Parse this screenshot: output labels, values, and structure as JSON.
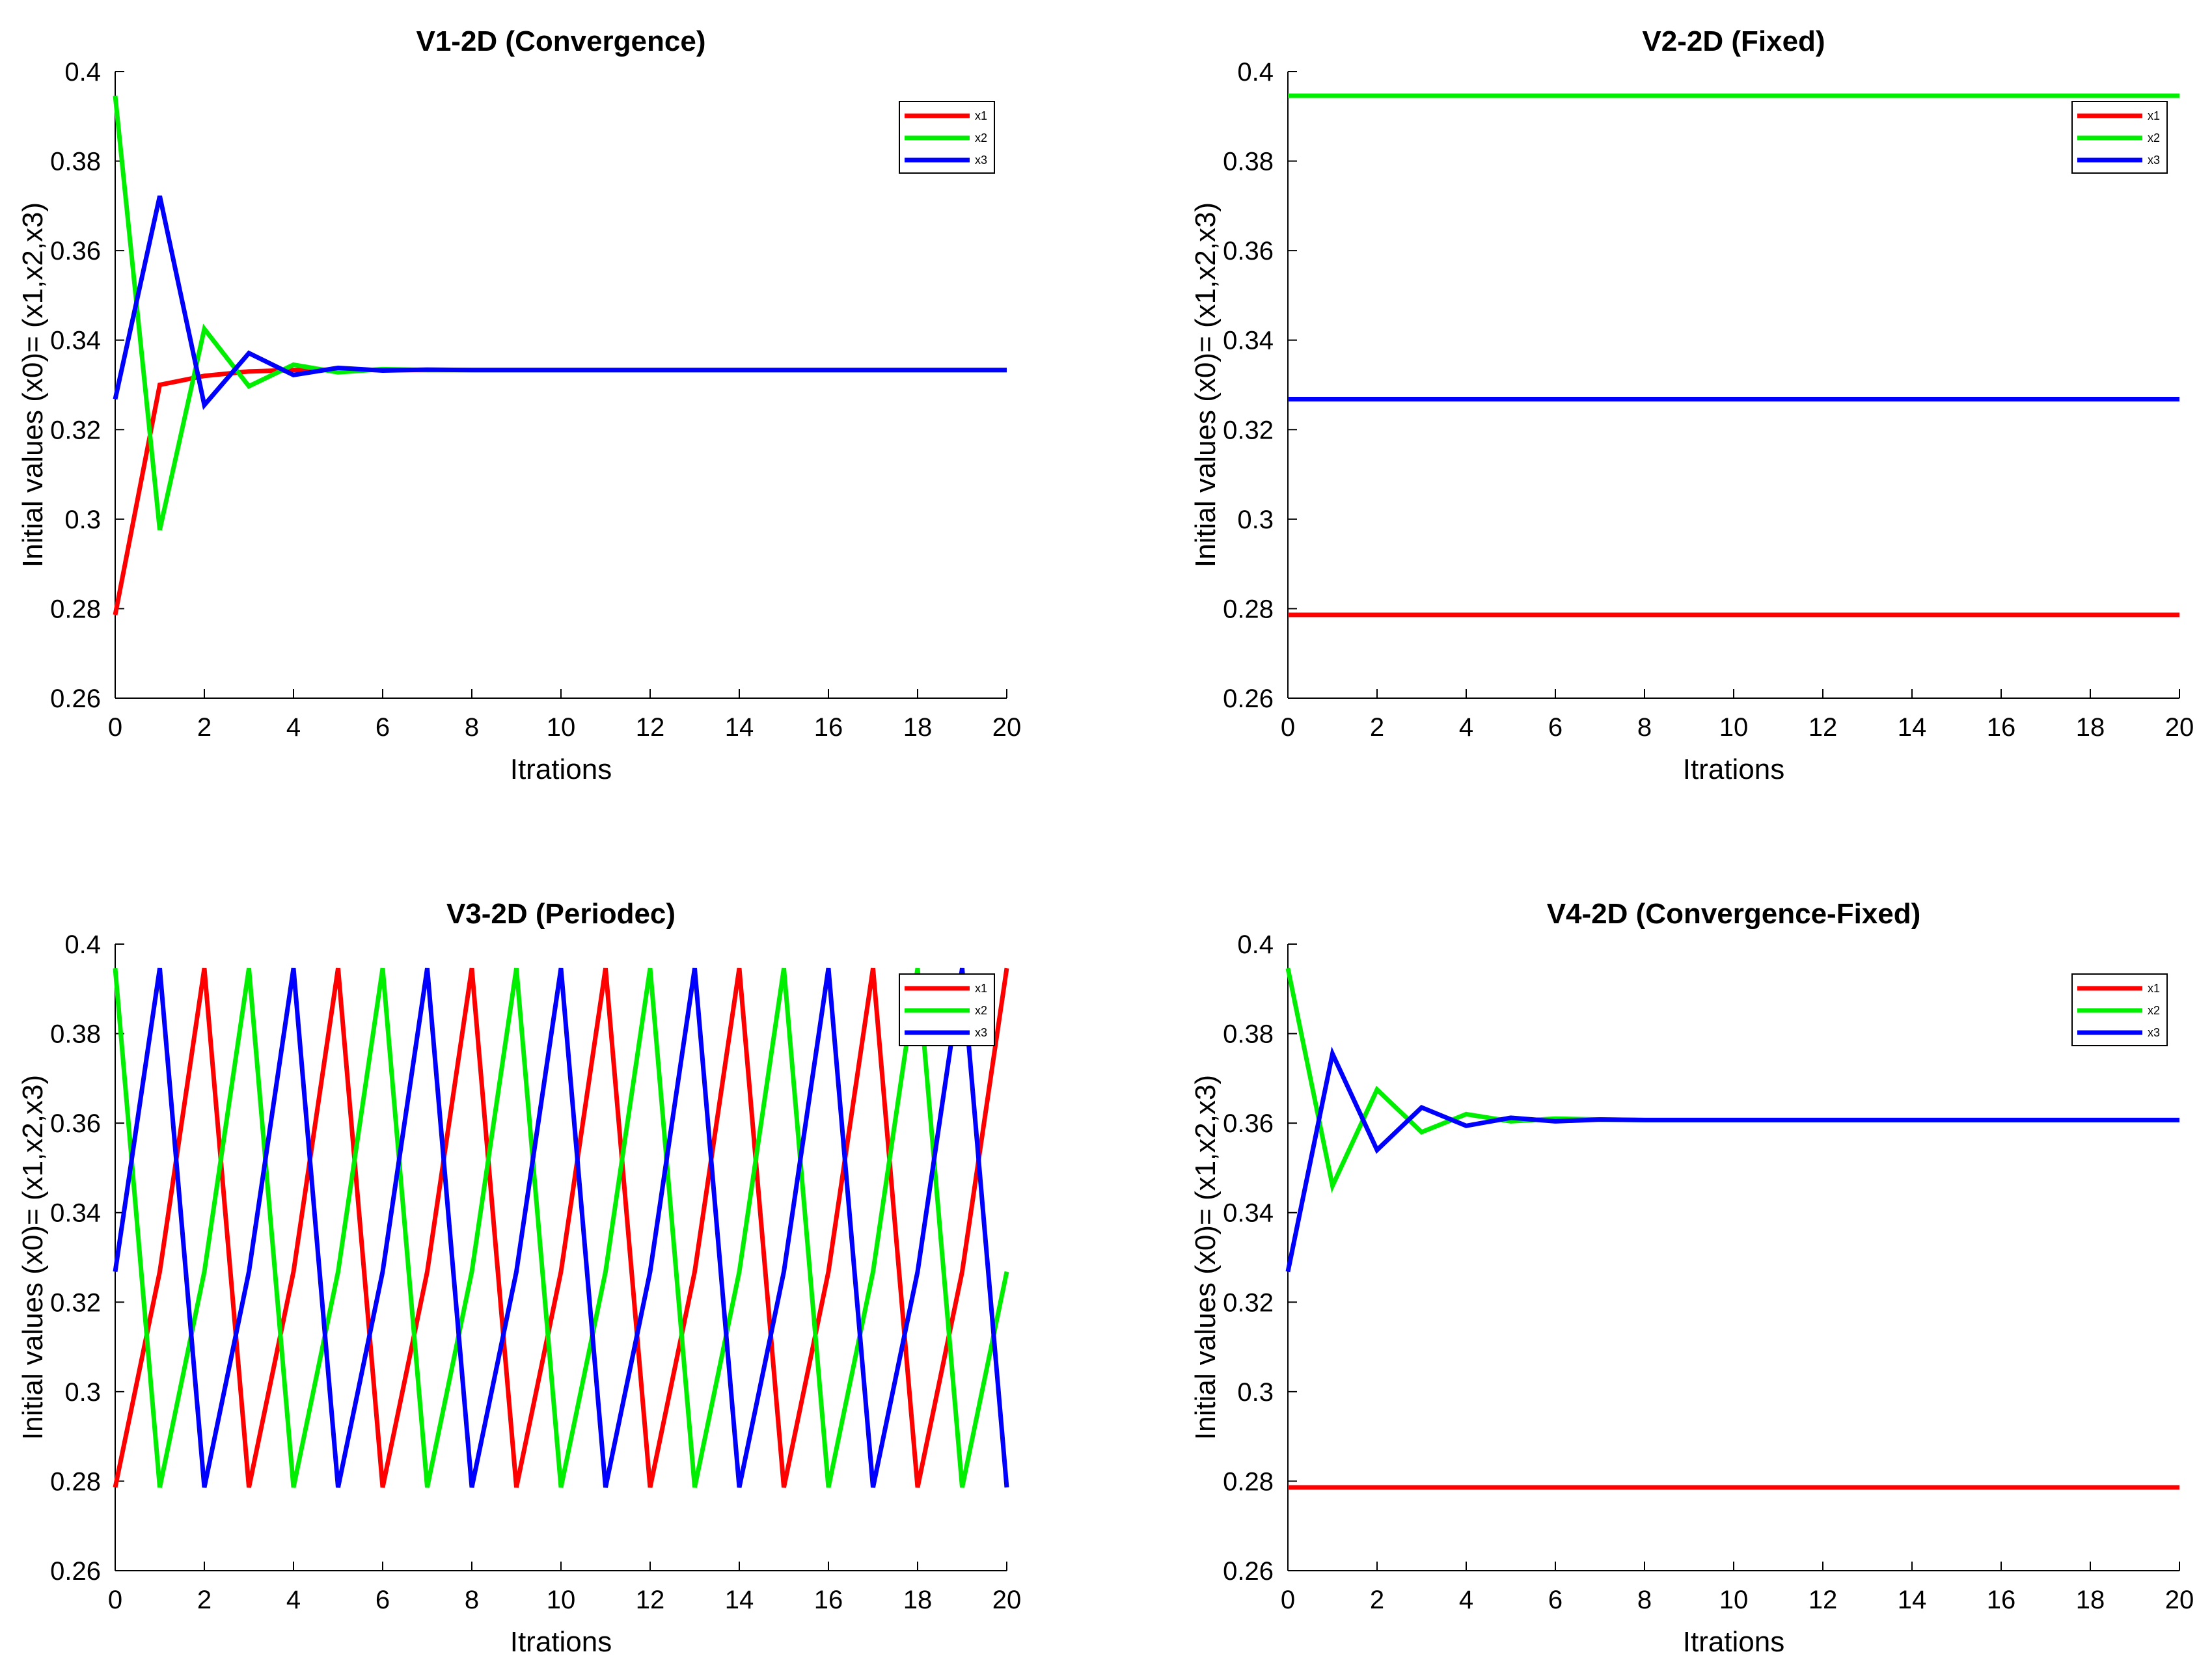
{
  "figure": {
    "background": "#ffffff"
  },
  "colors": {
    "x1": "#ff0000",
    "x2": "#00ee00",
    "x3": "#0000ff",
    "axis": "#000000"
  },
  "chart_data": [
    {
      "type": "line",
      "title": "V1-2D (Convergence)",
      "xlabel": "Itrations",
      "ylabel": "Initial values (x0)= (x1,x2,x3)",
      "xlim": [
        0,
        20
      ],
      "ylim": [
        0.26,
        0.4
      ],
      "xticks": [
        "0",
        "2",
        "4",
        "6",
        "8",
        "10",
        "12",
        "14",
        "16",
        "18",
        "20"
      ],
      "yticks": [
        "0.26",
        "0.28",
        "0.3",
        "0.32",
        "0.34",
        "0.36",
        "0.38",
        "0.4"
      ],
      "legend": "top-right",
      "x": [
        0,
        1,
        2,
        3,
        4,
        5,
        6,
        7,
        8,
        9,
        10,
        11,
        12,
        13,
        14,
        15,
        16,
        17,
        18,
        19,
        20
      ],
      "series": [
        {
          "name": "x1",
          "values": [
            0.2786,
            0.33,
            0.332,
            0.333,
            0.3333,
            0.3334,
            0.3333,
            0.3333,
            0.3333,
            0.3333,
            0.3333,
            0.3333,
            0.3333,
            0.3333,
            0.3333,
            0.3333,
            0.3333,
            0.3333,
            0.3333,
            0.3333,
            0.3333
          ]
        },
        {
          "name": "x2",
          "values": [
            0.3946,
            0.2976,
            0.3425,
            0.3297,
            0.3345,
            0.3328,
            0.3335,
            0.3333,
            0.3333,
            0.3333,
            0.3333,
            0.3333,
            0.3333,
            0.3333,
            0.3333,
            0.3333,
            0.3333,
            0.3333,
            0.3333,
            0.3333,
            0.3333
          ]
        },
        {
          "name": "x3",
          "values": [
            0.3268,
            0.3722,
            0.3255,
            0.3371,
            0.3322,
            0.3338,
            0.3332,
            0.3334,
            0.3333,
            0.3333,
            0.3333,
            0.3333,
            0.3333,
            0.3333,
            0.3333,
            0.3333,
            0.3333,
            0.3333,
            0.3333,
            0.3333,
            0.3333
          ]
        }
      ]
    },
    {
      "type": "line",
      "title": "V2-2D (Fixed)",
      "xlabel": "Itrations",
      "ylabel": "Initial values (x0)= (x1,x2,x3)",
      "xlim": [
        0,
        20
      ],
      "ylim": [
        0.26,
        0.4
      ],
      "xticks": [
        "0",
        "2",
        "4",
        "6",
        "8",
        "10",
        "12",
        "14",
        "16",
        "18",
        "20"
      ],
      "yticks": [
        "0.26",
        "0.28",
        "0.3",
        "0.32",
        "0.34",
        "0.36",
        "0.38",
        "0.4"
      ],
      "legend": "top-right",
      "x": [
        0,
        20
      ],
      "series": [
        {
          "name": "x1",
          "values": [
            0.2786,
            0.2786
          ]
        },
        {
          "name": "x2",
          "values": [
            0.3946,
            0.3946
          ]
        },
        {
          "name": "x3",
          "values": [
            0.3268,
            0.3268
          ]
        }
      ]
    },
    {
      "type": "line",
      "title": "V3-2D (Periodec)",
      "xlabel": "Itrations",
      "ylabel": "Initial values (x0)= (x1,x2,x3)",
      "xlim": [
        0,
        20
      ],
      "ylim": [
        0.26,
        0.4
      ],
      "xticks": [
        "0",
        "2",
        "4",
        "6",
        "8",
        "10",
        "12",
        "14",
        "16",
        "18",
        "20"
      ],
      "yticks": [
        "0.26",
        "0.28",
        "0.3",
        "0.32",
        "0.34",
        "0.36",
        "0.38",
        "0.4"
      ],
      "legend": "top-right",
      "x": [
        0,
        1,
        2,
        3,
        4,
        5,
        6,
        7,
        8,
        9,
        10,
        11,
        12,
        13,
        14,
        15,
        16,
        17,
        18,
        19,
        20
      ],
      "series": [
        {
          "name": "x1",
          "values": [
            0.2786,
            0.3268,
            0.3946,
            0.2786,
            0.3268,
            0.3946,
            0.2786,
            0.3268,
            0.3946,
            0.2786,
            0.3268,
            0.3946,
            0.2786,
            0.3268,
            0.3946,
            0.2786,
            0.3268,
            0.3946,
            0.2786,
            0.3268,
            0.3946
          ]
        },
        {
          "name": "x2",
          "values": [
            0.3946,
            0.2786,
            0.3268,
            0.3946,
            0.2786,
            0.3268,
            0.3946,
            0.2786,
            0.3268,
            0.3946,
            0.2786,
            0.3268,
            0.3946,
            0.2786,
            0.3268,
            0.3946,
            0.2786,
            0.3268,
            0.3946,
            0.2786,
            0.3268
          ]
        },
        {
          "name": "x3",
          "values": [
            0.3268,
            0.3946,
            0.2786,
            0.3268,
            0.3946,
            0.2786,
            0.3268,
            0.3946,
            0.2786,
            0.3268,
            0.3946,
            0.2786,
            0.3268,
            0.3946,
            0.2786,
            0.3268,
            0.3946,
            0.2786,
            0.3268,
            0.3946,
            0.2786
          ]
        }
      ]
    },
    {
      "type": "line",
      "title": "V4-2D (Convergence-Fixed)",
      "xlabel": "Itrations",
      "ylabel": "Initial values (x0)= (x1,x2,x3)",
      "xlim": [
        0,
        20
      ],
      "ylim": [
        0.26,
        0.4
      ],
      "xticks": [
        "0",
        "2",
        "4",
        "6",
        "8",
        "10",
        "12",
        "14",
        "16",
        "18",
        "20"
      ],
      "yticks": [
        "0.26",
        "0.28",
        "0.3",
        "0.32",
        "0.34",
        "0.36",
        "0.38",
        "0.4"
      ],
      "legend": "top-right",
      "x": [
        0,
        1,
        2,
        3,
        4,
        5,
        6,
        7,
        8,
        9,
        10,
        11,
        12,
        13,
        14,
        15,
        16,
        17,
        18,
        19,
        20
      ],
      "series": [
        {
          "name": "x1",
          "values": [
            0.2786,
            0.2786,
            0.2786,
            0.2786,
            0.2786,
            0.2786,
            0.2786,
            0.2786,
            0.2786,
            0.2786,
            0.2786,
            0.2786,
            0.2786,
            0.2786,
            0.2786,
            0.2786,
            0.2786,
            0.2786,
            0.2786,
            0.2786,
            0.2786
          ]
        },
        {
          "name": "x2",
          "values": [
            0.3946,
            0.346,
            0.3675,
            0.358,
            0.362,
            0.3604,
            0.361,
            0.3608,
            0.3607,
            0.3607,
            0.3607,
            0.3607,
            0.3607,
            0.3607,
            0.3607,
            0.3607,
            0.3607,
            0.3607,
            0.3607,
            0.3607,
            0.3607
          ]
        },
        {
          "name": "x3",
          "values": [
            0.3268,
            0.3755,
            0.354,
            0.3635,
            0.3594,
            0.3612,
            0.3604,
            0.3608,
            0.3607,
            0.3607,
            0.3607,
            0.3607,
            0.3607,
            0.3607,
            0.3607,
            0.3607,
            0.3607,
            0.3607,
            0.3607,
            0.3607,
            0.3607
          ]
        }
      ]
    }
  ]
}
